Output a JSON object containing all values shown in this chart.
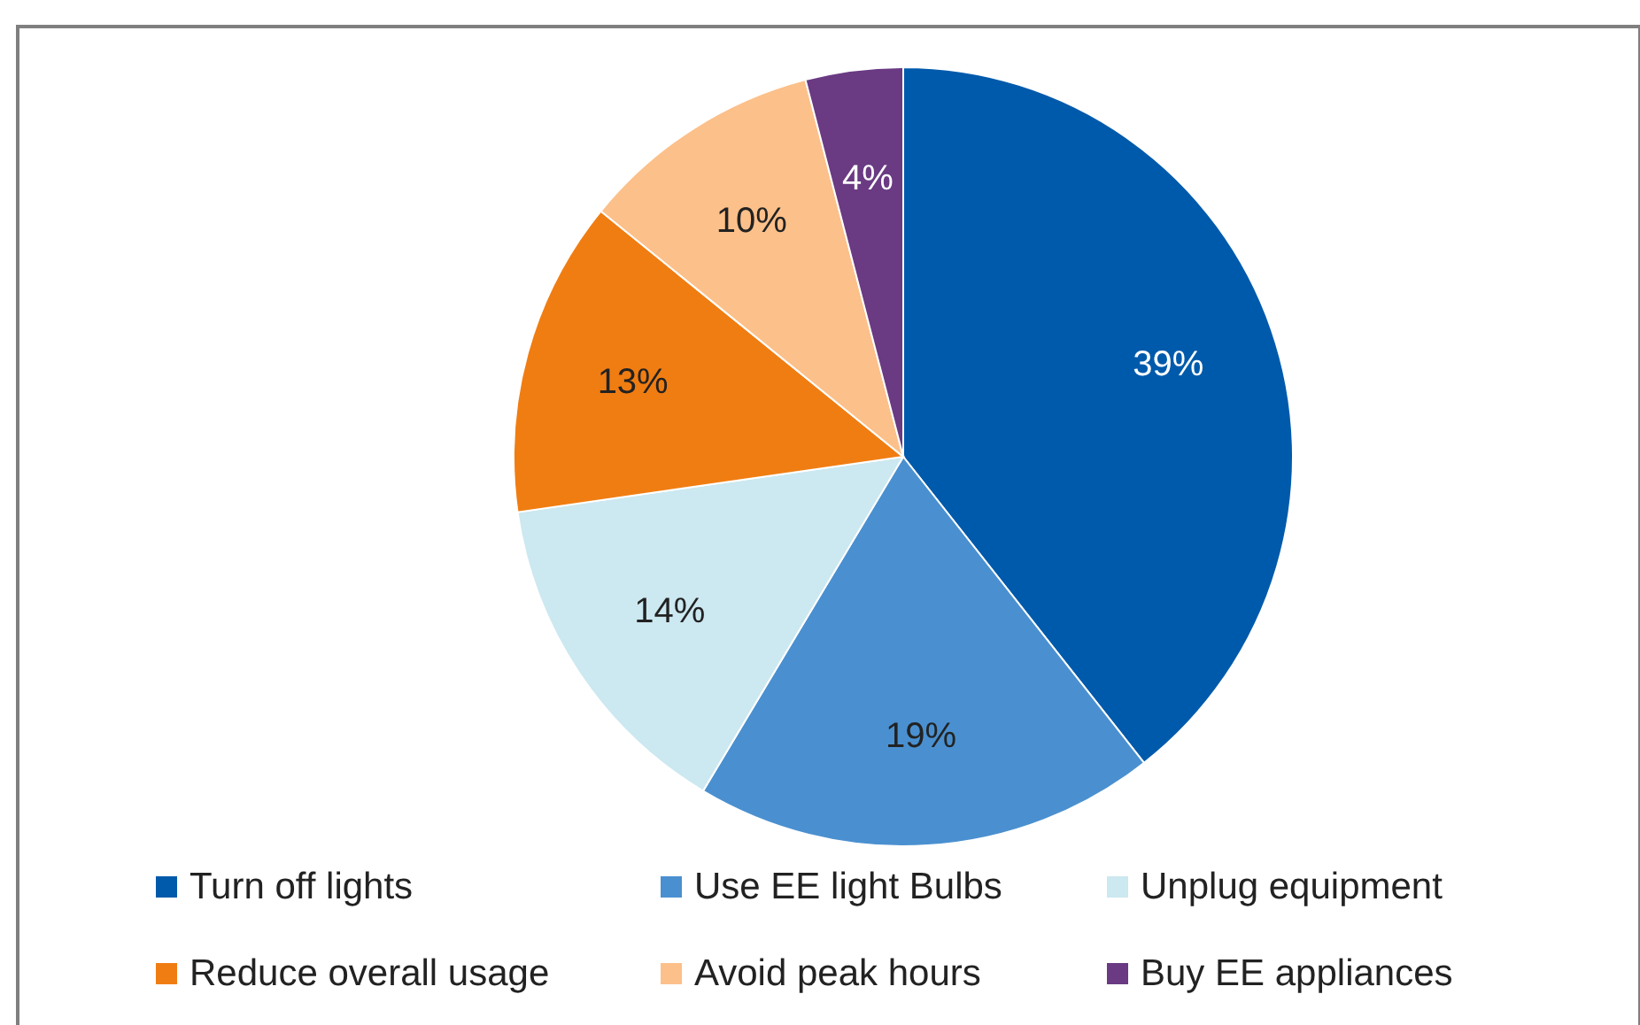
{
  "chart_data": {
    "type": "pie",
    "categories": [
      "Turn off lights",
      "Use EE light Bulbs",
      "Unplug equipment",
      "Reduce overall usage",
      "Avoid peak hours",
      "Buy EE appliances"
    ],
    "values": [
      39,
      19,
      14,
      13,
      10,
      4
    ],
    "colors": [
      "#005aab",
      "#4a90d0",
      "#cce8f0",
      "#f07d12",
      "#fcc08a",
      "#6a3a83"
    ],
    "value_labels": [
      "39%",
      "19%",
      "14%",
      "13%",
      "10%",
      "4%"
    ],
    "legend": "bottom"
  }
}
